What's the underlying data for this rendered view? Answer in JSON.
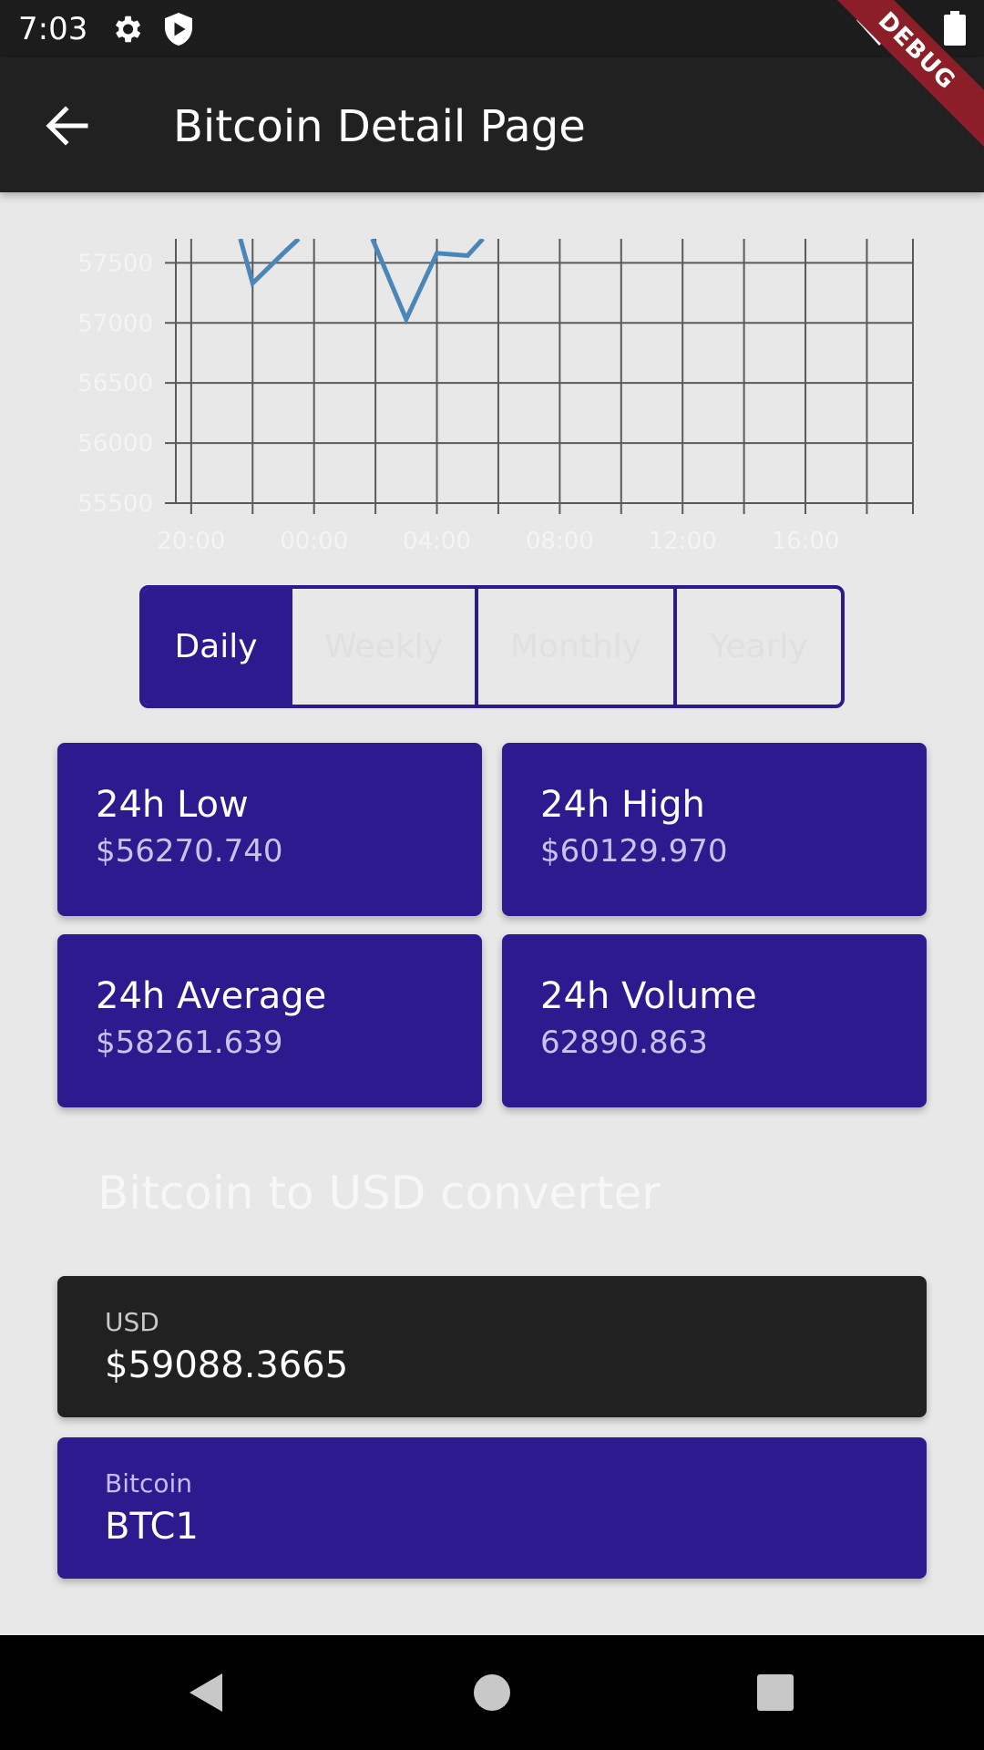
{
  "status_bar": {
    "time": "7:03",
    "icons": [
      "gear-icon",
      "shield-icon",
      "wifi-icon",
      "battery-icon"
    ]
  },
  "debug_banner": "DEBUG",
  "app_bar": {
    "title": "Bitcoin Detail Page",
    "back_icon": "arrow-left-icon"
  },
  "chart_data": {
    "type": "line",
    "title": "",
    "xlabel": "",
    "ylabel": "",
    "x_ticks": [
      "20:00",
      "00:00",
      "04:00",
      "08:00",
      "12:00",
      "16:00"
    ],
    "y_ticks": [
      "57500",
      "57000",
      "56500",
      "56000",
      "55500"
    ],
    "ylim": [
      55500,
      57700
    ],
    "grid": true,
    "series": [
      {
        "color": "#4a86b8",
        "x": [
          21.6,
          22.0,
          23.0,
          23.5
        ],
        "values": [
          57700,
          57330,
          57580,
          57700
        ]
      },
      {
        "color": "#4a86b8",
        "x": [
          1.9,
          3.0,
          4.0,
          5.0,
          5.5
        ],
        "values": [
          57700,
          57030,
          57580,
          57560,
          57700
        ]
      }
    ]
  },
  "tabs": [
    {
      "label": "Daily",
      "active": true
    },
    {
      "label": "Weekly",
      "active": false
    },
    {
      "label": "Monthly",
      "active": false
    },
    {
      "label": "Yearly",
      "active": false
    }
  ],
  "stats": {
    "low": {
      "label": "24h Low",
      "value": "$56270.740"
    },
    "high": {
      "label": "24h High",
      "value": "$60129.970"
    },
    "average": {
      "label": "24h Average",
      "value": "$58261.639"
    },
    "volume": {
      "label": "24h Volume",
      "value": "62890.863"
    }
  },
  "converter": {
    "title": "Bitcoin to USD converter",
    "usd": {
      "label": "USD",
      "value": "$59088.3665"
    },
    "btc": {
      "label": "Bitcoin",
      "value": "BTC1"
    }
  },
  "colors": {
    "primary": "#2e1a8f",
    "dark": "#212121",
    "line": "#4a86b8",
    "background": "#e8e8e8"
  },
  "nav": [
    "back-triangle-icon",
    "home-circle-icon",
    "recents-square-icon"
  ]
}
